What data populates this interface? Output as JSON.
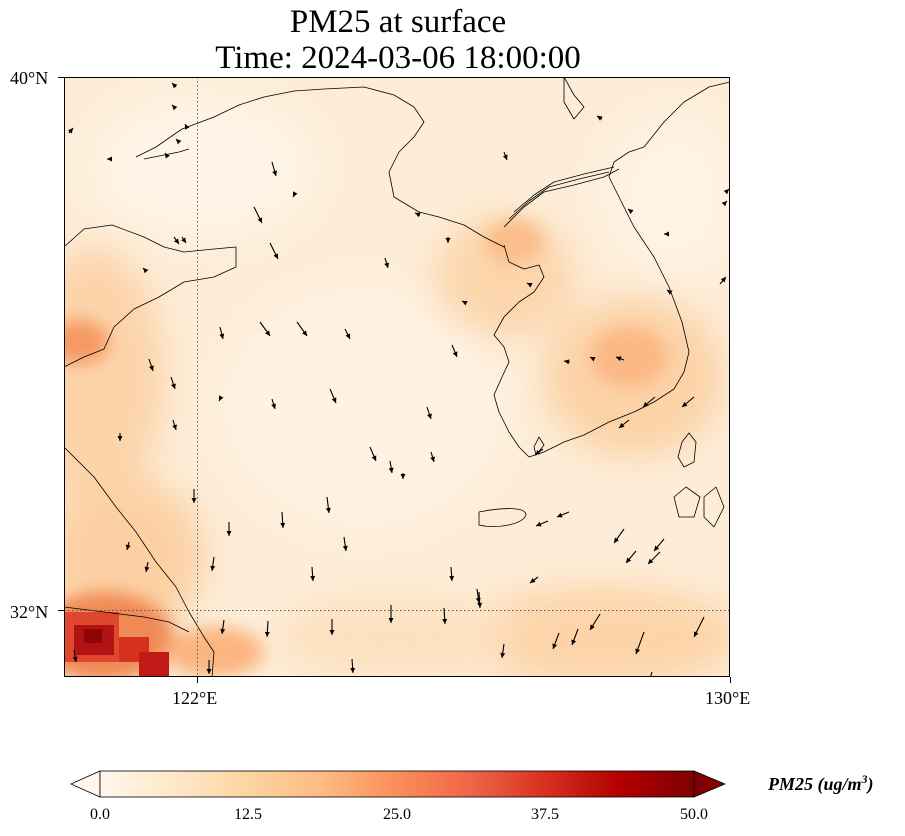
{
  "title": {
    "line1": "PM25 at surface",
    "line2": "Time: 2024-03-06 18:00:00"
  },
  "map": {
    "latitude_labels": [
      "40°N",
      "32°N"
    ],
    "longitude_labels": [
      "122°E",
      "130°E"
    ],
    "extent": {
      "lon_min": 120,
      "lon_max": 130,
      "lat_min": 31,
      "lat_max": 40
    },
    "gridlines": {
      "longitude": 122,
      "latitude": 32,
      "style": "dotted"
    },
    "overlays": [
      "coastline",
      "wind-vectors"
    ],
    "icon": "wind-arrow-icon"
  },
  "colorbar": {
    "title_main": "PM25 (ug/m",
    "title_sup": "3",
    "title_close": ")",
    "ticks": [
      "0.0",
      "12.5",
      "25.0",
      "37.5",
      "50.0"
    ],
    "min": 0,
    "max": 50,
    "extend": "both",
    "colormap": [
      "#fff7ec",
      "#fee8c8",
      "#fdd49e",
      "#fdbb84",
      "#fc8d59",
      "#ef6548",
      "#d7301f",
      "#b30000",
      "#7f0000"
    ]
  }
}
